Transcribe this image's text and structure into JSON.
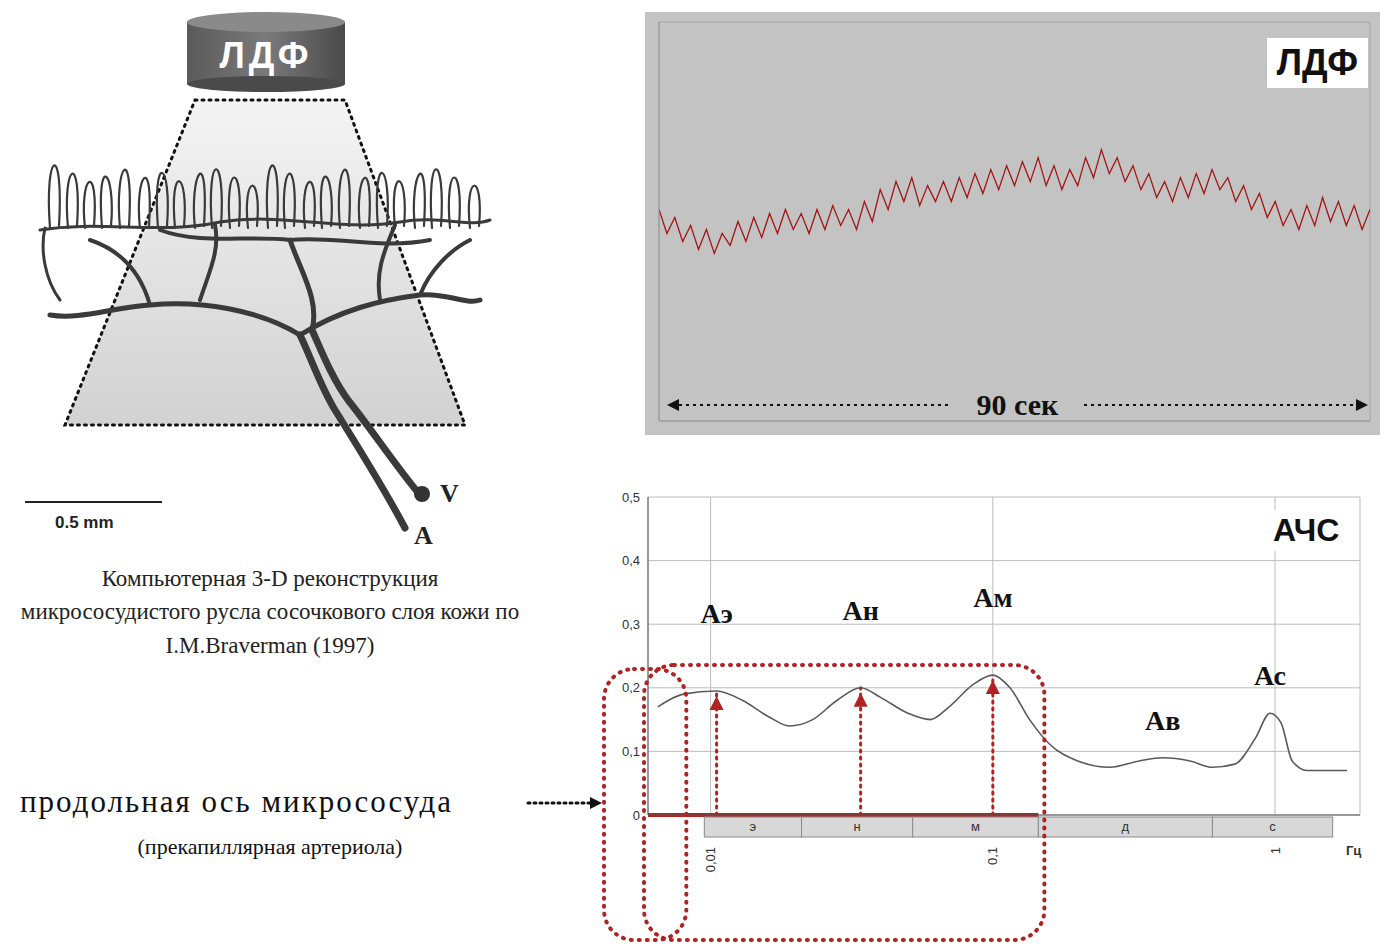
{
  "diagram": {
    "probe_label": "ЛДФ",
    "scale_bar": "0.5 mm",
    "vessel_labels": [
      "V",
      "A"
    ],
    "caption": "Компьютерная 3-D реконструкция микрососудистого русла сосочкового слоя кожи по I.M.Braverman (1997)",
    "axis_label": "продольная ось микрососуда",
    "axis_sublabel": "(прекапиллярная артериола)"
  },
  "chart_data": [
    {
      "type": "line",
      "title": "ЛДФ",
      "annotation": "90 сек",
      "x": [
        0,
        1,
        2,
        3,
        4,
        5,
        6,
        7,
        8,
        9,
        10,
        11,
        12,
        13,
        14,
        15,
        16,
        17,
        18,
        19,
        20,
        21,
        22,
        23,
        24,
        25,
        26,
        27,
        28,
        29,
        30,
        31,
        32,
        33,
        34,
        35,
        36,
        37,
        38,
        39,
        40,
        41,
        42,
        43,
        44,
        45,
        46,
        47,
        48,
        49,
        50,
        51,
        52,
        53,
        54,
        55,
        56,
        57,
        58,
        59,
        60,
        61,
        62,
        63,
        64,
        65,
        66,
        67,
        68,
        69,
        70,
        71,
        72,
        73,
        74,
        75,
        76,
        77,
        78,
        79,
        80,
        81,
        82,
        83,
        84,
        85,
        86,
        87,
        88,
        89,
        90
      ],
      "values": [
        5.3,
        4.7,
        5.1,
        4.5,
        4.9,
        4.3,
        4.8,
        4.2,
        4.7,
        4.4,
        5.0,
        4.5,
        5.1,
        4.6,
        5.2,
        4.7,
        5.3,
        4.8,
        5.2,
        4.7,
        5.3,
        4.8,
        5.4,
        4.9,
        5.3,
        4.8,
        5.5,
        5.0,
        5.8,
        5.3,
        6.0,
        5.5,
        6.1,
        5.4,
        5.9,
        5.5,
        6.0,
        5.5,
        6.1,
        5.6,
        6.2,
        5.7,
        6.3,
        5.8,
        6.4,
        5.9,
        6.5,
        6.0,
        6.6,
        5.9,
        6.4,
        5.8,
        6.3,
        5.9,
        6.6,
        6.1,
        6.8,
        6.2,
        6.6,
        6.0,
        6.4,
        5.8,
        6.2,
        5.6,
        6.0,
        5.5,
        6.1,
        5.6,
        6.2,
        5.7,
        6.3,
        5.8,
        6.1,
        5.5,
        5.9,
        5.3,
        5.7,
        5.1,
        5.5,
        4.9,
        5.3,
        4.8,
        5.4,
        4.9,
        5.6,
        5.0,
        5.5,
        4.9,
        5.4,
        4.8,
        5.3
      ],
      "xlim": [
        0,
        90
      ],
      "xticks": [
        0,
        10,
        20,
        30,
        40,
        50,
        60,
        70,
        80,
        90
      ],
      "ylim": [
        0,
        10
      ],
      "yticks": [
        0,
        1,
        2,
        3,
        4,
        5,
        6,
        7,
        8,
        9,
        10
      ],
      "grid": true,
      "tick_labels": false,
      "color": "#a31515"
    },
    {
      "type": "line",
      "title": "АЧС",
      "x_label": "Гц",
      "x": [
        0.0065,
        0.008,
        0.0105,
        0.013,
        0.016,
        0.019,
        0.023,
        0.028,
        0.034,
        0.04,
        0.05,
        0.06,
        0.07,
        0.085,
        0.1,
        0.115,
        0.135,
        0.16,
        0.2,
        0.26,
        0.33,
        0.4,
        0.5,
        0.6,
        0.72,
        0.85,
        0.96,
        1.05,
        1.15,
        1.3,
        1.8
      ],
      "values": [
        0.17,
        0.19,
        0.195,
        0.18,
        0.155,
        0.14,
        0.15,
        0.18,
        0.2,
        0.185,
        0.16,
        0.15,
        0.17,
        0.205,
        0.22,
        0.2,
        0.15,
        0.11,
        0.085,
        0.075,
        0.085,
        0.09,
        0.085,
        0.075,
        0.08,
        0.12,
        0.16,
        0.145,
        0.085,
        0.07,
        0.07
      ],
      "xlim": [
        0.006,
        2
      ],
      "xticks": [
        {
          "value": 0.01,
          "label": "0,01"
        },
        {
          "value": 0.1,
          "label": "0,1"
        },
        1
      ],
      "ylim": [
        0,
        0.5
      ],
      "yticks": [
        0,
        {
          "value": 0.1,
          "label": "0,1"
        },
        {
          "value": 0.2,
          "label": "0,2"
        },
        {
          "value": 0.3,
          "label": "0,3"
        },
        {
          "value": 0.4,
          "label": "0,4"
        },
        {
          "value": 0.5,
          "label": "0,5"
        }
      ],
      "log": "x",
      "grid": true,
      "color": "#5a5a5a",
      "peaks": [
        {
          "label": "Аэ",
          "x": 0.0105,
          "y": 0.195,
          "arrow": true
        },
        {
          "label": "Ан",
          "x": 0.034,
          "y": 0.2,
          "arrow": true
        },
        {
          "label": "Ам",
          "x": 0.1,
          "y": 0.22,
          "arrow": true
        },
        {
          "label": "Ав",
          "x": 0.4,
          "y": 0.09,
          "arrow": false
        },
        {
          "label": "Ас",
          "x": 0.96,
          "y": 0.16,
          "arrow": false
        }
      ],
      "bands": [
        {
          "label": "э",
          "from": 0.0095,
          "to": 0.021,
          "highlighted": true
        },
        {
          "label": "н",
          "from": 0.021,
          "to": 0.052,
          "highlighted": true
        },
        {
          "label": "м",
          "from": 0.052,
          "to": 0.145,
          "highlighted": true
        },
        {
          "label": "д",
          "from": 0.145,
          "to": 0.6,
          "highlighted": false
        },
        {
          "label": "с",
          "from": 0.6,
          "to": 1.6,
          "highlighted": false
        }
      ]
    }
  ]
}
